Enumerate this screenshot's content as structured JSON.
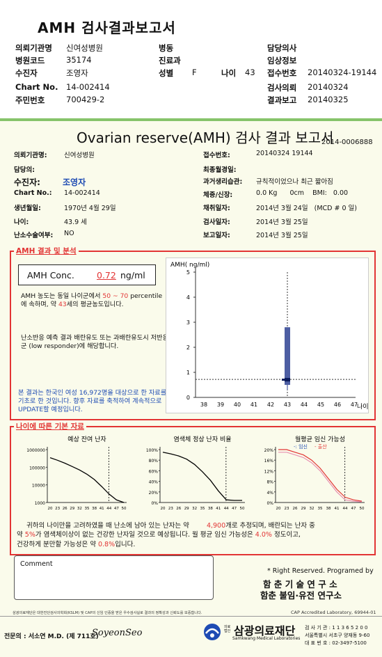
{
  "top": {
    "title": "AMH 검사결과보고서",
    "rows": [
      {
        "label": "의뢰기관명",
        "value": "신여성병원",
        "mid_label": "병동",
        "mid_value": "",
        "right_label": "담당의사",
        "right_value": ""
      },
      {
        "label": "병원코드",
        "value": "35174",
        "mid_label": "진료과",
        "mid_value": "",
        "right_label": "임상정보",
        "right_value": ""
      },
      {
        "label": "수진자",
        "value": "조영자",
        "mid_label": "성별",
        "mid_value": "F",
        "age_label": "나이",
        "age_value": "43",
        "right_label": "접수번호",
        "right_value": "20140324-19144"
      },
      {
        "label": "Chart No.",
        "value": "14-002414",
        "mid_label": "",
        "mid_value": "",
        "right_label": "검사의뢰",
        "right_value": "20140324"
      },
      {
        "label": "주민번호",
        "value": "700429-2",
        "mid_label": "",
        "mid_value": "",
        "right_label": "결과보고",
        "right_value": "20140325"
      }
    ]
  },
  "report": {
    "title": "Ovarian reserve(AMH) 검사 결과 보고서",
    "doc_no": "2014-0006888",
    "left": [
      {
        "label": "의뢰기관명:",
        "value": "신여성병원"
      },
      {
        "label": "담당의:",
        "value": ""
      },
      {
        "label": "수진자:",
        "value": "조영자"
      },
      {
        "label": "Chart No.:",
        "value": "14-002414"
      },
      {
        "label": "생년월일:",
        "value": "1970년 4월 29일"
      },
      {
        "label": "나이:",
        "value": "43.9 세"
      },
      {
        "label": "난소수술여부:",
        "value": "NO"
      }
    ],
    "right": [
      {
        "label": "접수번호:",
        "value": "20140324 19144"
      },
      {
        "label": "최종월경일:",
        "value": ""
      },
      {
        "label": "과거생리습관:",
        "value": "규칙적이었으나 최근 짧아짐"
      },
      {
        "label": "체중/신장:",
        "value": "0.0 Kg      0cm    BMI:   0.00"
      },
      {
        "label": "채취일자:",
        "value": "2014년 3월 24일   (MCD # 0 일)"
      },
      {
        "label": "검사일자:",
        "value": "2014년 3월 25일"
      },
      {
        "label": "보고일자:",
        "value": "2014년 3월 25일"
      }
    ]
  },
  "amh": {
    "section_title": "AMH 결과 및 분석",
    "conc_label": "AMH Conc.",
    "conc_value": "0.72",
    "conc_unit": "ng/ml",
    "text1_a": "AMH 농도는 동일 나이군에서",
    "text1_b": "50 ~ 70",
    "text1_c": "percentile에 속하며, 약",
    "text1_d": "43",
    "text1_e": "세의 평균농도입니다.",
    "text2": "난소반응 예측 결과 배란유도 또는 과배란유도시 저반응군 (low responder)에 해당합니다.",
    "text3": "본 결과는 한국인 여성 16,972명을 대상으로 한 자료를 기초로 한 것입니다. 향후 자료를 축적하여 계속적으로 UPDATE할 예정입니다."
  },
  "age_section": {
    "title": "나이에 따른 기본 자료",
    "chart_titles": [
      "예상 잔여 난자",
      "염색체 정상 난자 비율",
      "월평균 임신 가능성"
    ],
    "legend": {
      "pregnancy": "-: 임신",
      "birth": "- 출산"
    },
    "summary1_a": "귀하의 나이만을 고려하였을 때 난소에 남아 있는 난자는 약",
    "summary1_b": "4,900",
    "summary1_c": "개로 추정되며, 배란되는 난자 중",
    "summary2_a": "약",
    "summary2_b": "5%",
    "summary2_c": "가 염색체이상이 없는 건강한 난자일 것으로 예상됩니다. 월 평균 임신 가능성은",
    "summary2_d": "4.0%",
    "summary2_e": "정도이고,",
    "summary3_a": "건강하게 분만할 가능성은 약",
    "summary3_b": "0.8%",
    "summary3_c": "입니다."
  },
  "comment_label": "Comment",
  "rights": "* Right Reserved. Programed by",
  "inst1": "함 춘 기 술 연 구 소",
  "inst2": "함춘 불임·유전 연구소",
  "footnote_left": "삼광의료재단은 대한진단검사의학회(KSLM) 및 CAP의 신임 인증을 받은 우수검사실로 결과의 정확성과 신뢰도를 보증합니다.",
  "footnote_right": "CAP Accredited Laboratory, 69944-01",
  "doctor": "전문의 : 서소연 M.D. (제 711호)",
  "signature": "SoyeonSeo",
  "lab_small": "의료\n법인",
  "lab_name": "삼광의료재단",
  "lab_en": "Samkwang Medical Laboratories",
  "lab_code": "검 사 기 관 : 1 1 3 6 5 2 0 0",
  "lab_addr": "서울특별시 서초구 양재동 9-60",
  "lab_tel": "대 표 번 호 : 02-3497-5100",
  "chart_data": [
    {
      "type": "box",
      "title": "",
      "ylabel": "AMH( ng/ml)",
      "xlabel": "나이",
      "categories": [
        38,
        39,
        40,
        41,
        42,
        43,
        44,
        45,
        46,
        47
      ],
      "ylim": [
        0,
        5
      ],
      "yticks": [
        0,
        1,
        2,
        3,
        4,
        5
      ],
      "current_age": 43,
      "box": {
        "age": 43,
        "low": 0.3,
        "q1": 0.5,
        "median": 0.72,
        "q3": 2.8,
        "high": 2.8
      },
      "patient_value": 0.72,
      "reference_line_y": 0.72
    },
    {
      "type": "line",
      "title": "예상 잔여 난자",
      "x": [
        20,
        23,
        26,
        29,
        32,
        35,
        38,
        41,
        44,
        47,
        50
      ],
      "yscale": "log",
      "yticks": [
        "1000000",
        "100000",
        "10000",
        "1000"
      ],
      "values": [
        350000,
        250000,
        170000,
        110000,
        70000,
        40000,
        20000,
        8000,
        3000,
        1400,
        1000
      ],
      "marker_age": 43.9
    },
    {
      "type": "line",
      "title": "염색체 정상 난자 비율",
      "x": [
        20,
        23,
        26,
        29,
        32,
        35,
        38,
        41,
        44,
        47,
        50
      ],
      "yticks": [
        "100%",
        "80%",
        "60%",
        "40%",
        "20%",
        "0%"
      ],
      "values": [
        95,
        92,
        88,
        82,
        72,
        58,
        42,
        22,
        5,
        4,
        4
      ],
      "marker_age": 43.9
    },
    {
      "type": "line",
      "title": "월평균 임신 가능성",
      "x": [
        20,
        23,
        26,
        29,
        32,
        35,
        38,
        41,
        44,
        47,
        50
      ],
      "yticks": [
        "20%",
        "16%",
        "12%",
        "8%",
        "4%",
        "0%"
      ],
      "series": [
        {
          "name": "임신",
          "values": [
            20,
            20,
            19,
            18,
            16,
            13,
            9,
            5,
            2,
            1,
            0.5
          ]
        },
        {
          "name": "출산",
          "values": [
            19,
            19,
            18,
            17,
            15,
            12,
            8,
            4,
            1,
            0.5,
            0.2
          ]
        }
      ],
      "marker_age": 43.9
    }
  ],
  "colors": {
    "red": "#e23434",
    "blue": "#1e4bb3",
    "box": "#4d5ea3",
    "green": "#86c36a"
  }
}
